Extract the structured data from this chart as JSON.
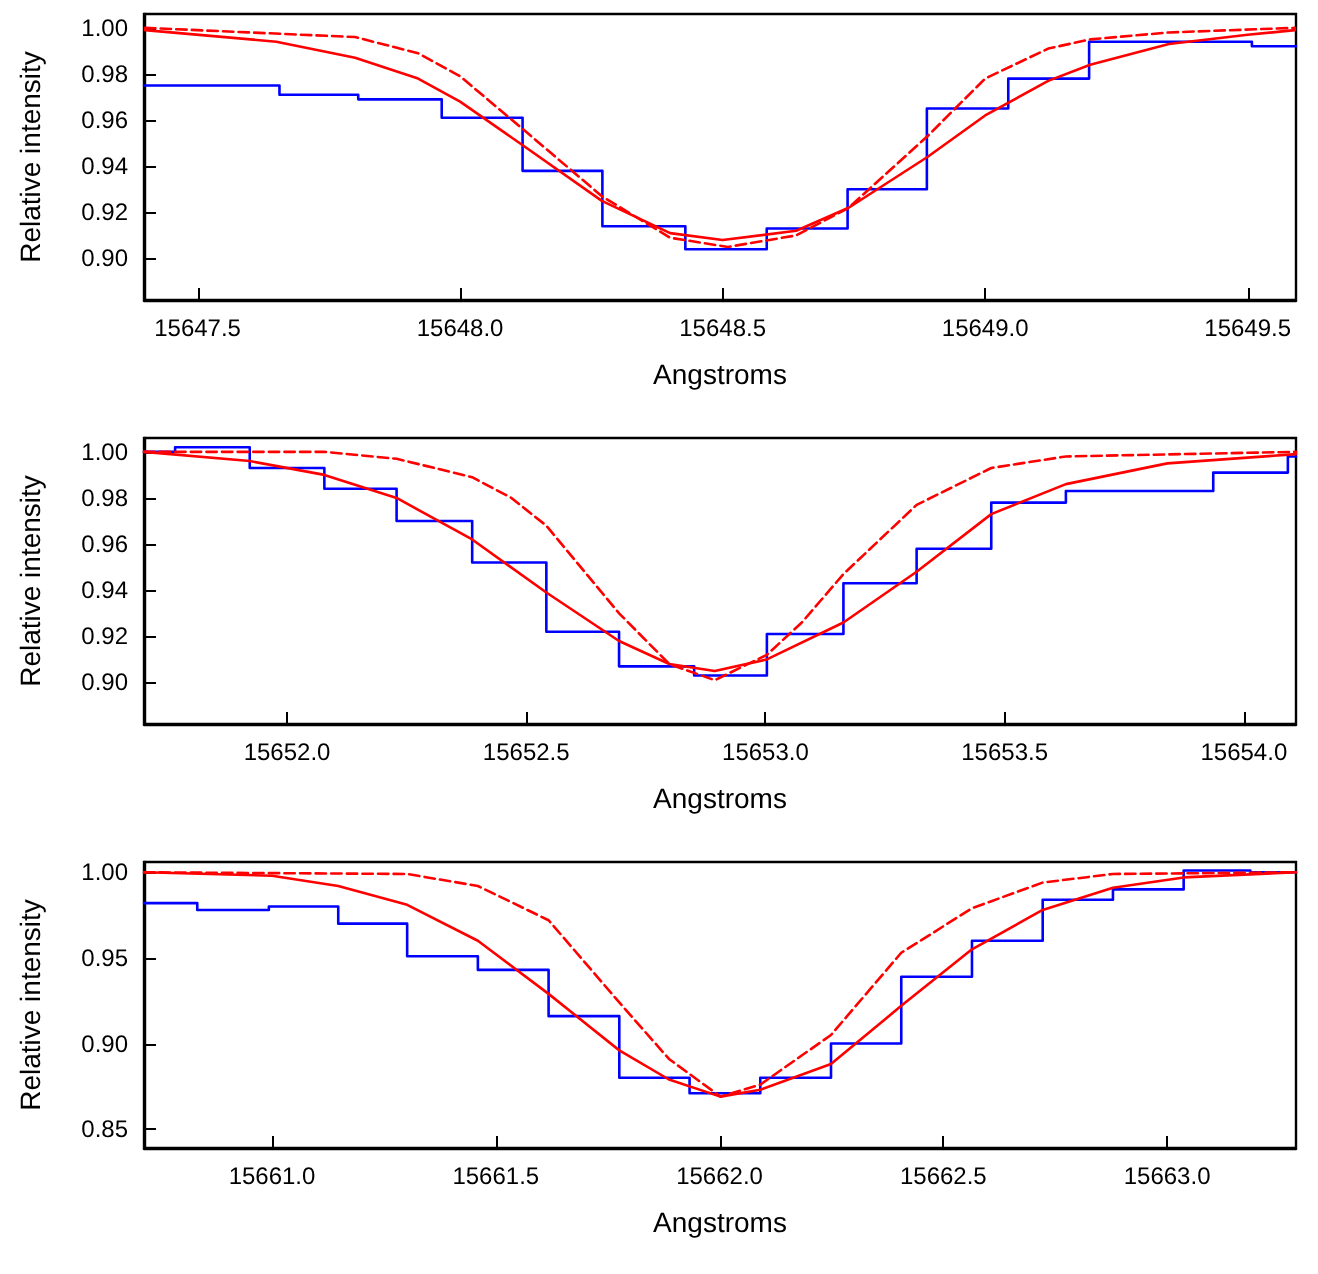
{
  "chart_data": [
    {
      "type": "line",
      "xlabel": "Angstroms",
      "ylabel": "Relative intensity",
      "xlim": [
        15647.398,
        15649.592
      ],
      "ylim": [
        0.882,
        1.006
      ],
      "xticks": [
        {
          "value": 15647.5,
          "label": "15647.5"
        },
        {
          "value": 15648,
          "label": "15648.0"
        },
        {
          "value": 15648.5,
          "label": "15648.5"
        },
        {
          "value": 15649,
          "label": "15649.0"
        },
        {
          "value": 15649.5,
          "label": "15649.5"
        }
      ],
      "yticks": [
        {
          "value": 0.9,
          "label": "0.90"
        },
        {
          "value": 0.92,
          "label": "0.92"
        },
        {
          "value": 0.94,
          "label": "0.94"
        },
        {
          "value": 0.96,
          "label": "0.96"
        },
        {
          "value": 0.98,
          "label": "0.98"
        },
        {
          "value": 1,
          "label": "1.00"
        }
      ],
      "grid": false,
      "marker": "none",
      "series": [
        {
          "type": "step",
          "color": "#0000ff",
          "line_style": "solid",
          "x": [
            15647.398,
            15647.656,
            15647.806,
            15647.965,
            15648.119,
            15648.271,
            15648.429,
            15648.584,
            15648.738,
            15648.889,
            15649.044,
            15649.198,
            15649.508,
            15649.592
          ],
          "values": [
            0.975,
            0.971,
            0.969,
            0.961,
            0.938,
            0.914,
            0.904,
            0.913,
            0.93,
            0.965,
            0.978,
            0.994,
            0.992,
            0.992
          ]
        },
        {
          "type": "line",
          "color": "#ff0000",
          "line_style": "solid",
          "x": [
            15647.4,
            15647.65,
            15647.8,
            15647.92,
            15648.0,
            15648.12,
            15648.27,
            15648.4,
            15648.5,
            15648.64,
            15648.74,
            15648.89,
            15649.0,
            15649.12,
            15649.2,
            15649.35,
            15649.5,
            15649.59
          ],
          "values": [
            0.999,
            0.994,
            0.987,
            0.978,
            0.968,
            0.949,
            0.925,
            0.911,
            0.908,
            0.912,
            0.922,
            0.944,
            0.962,
            0.977,
            0.984,
            0.993,
            0.997,
            0.999
          ]
        },
        {
          "type": "line",
          "color": "#ff0000",
          "line_style": "dashed",
          "x": [
            15647.4,
            15647.8,
            15647.92,
            15648.0,
            15648.12,
            15648.27,
            15648.4,
            15648.51,
            15648.64,
            15648.74,
            15648.89,
            15649.0,
            15649.12,
            15649.2,
            15649.35,
            15649.59
          ],
          "values": [
            1.0,
            0.996,
            0.989,
            0.979,
            0.956,
            0.927,
            0.909,
            0.905,
            0.91,
            0.922,
            0.953,
            0.978,
            0.991,
            0.995,
            0.998,
            1.0
          ]
        }
      ]
    },
    {
      "type": "line",
      "xlabel": "Angstroms",
      "ylabel": "Relative intensity",
      "xlim": [
        15651.701,
        15654.109
      ],
      "ylim": [
        0.882,
        1.006
      ],
      "xticks": [
        {
          "value": 15652,
          "label": "15652.0"
        },
        {
          "value": 15652.5,
          "label": "15652.5"
        },
        {
          "value": 15653,
          "label": "15653.0"
        },
        {
          "value": 15653.5,
          "label": "15653.5"
        },
        {
          "value": 15654,
          "label": "15654.0"
        }
      ],
      "yticks": [
        {
          "value": 0.9,
          "label": "0.90"
        },
        {
          "value": 0.92,
          "label": "0.92"
        },
        {
          "value": 0.94,
          "label": "0.94"
        },
        {
          "value": 0.96,
          "label": "0.96"
        },
        {
          "value": 0.98,
          "label": "0.98"
        },
        {
          "value": 1,
          "label": "1.00"
        }
      ],
      "grid": false,
      "marker": "none",
      "series": [
        {
          "type": "step",
          "color": "#0000ff",
          "line_style": "solid",
          "x": [
            15651.701,
            15651.766,
            15651.922,
            15652.078,
            15652.229,
            15652.387,
            15652.542,
            15652.694,
            15652.851,
            15653.003,
            15653.163,
            15653.316,
            15653.472,
            15653.628,
            15653.936,
            15654.092,
            15654.109
          ],
          "values": [
            1.0,
            1.002,
            0.993,
            0.984,
            0.97,
            0.952,
            0.922,
            0.907,
            0.903,
            0.921,
            0.943,
            0.958,
            0.978,
            0.983,
            0.991,
            0.998,
            0.998
          ]
        },
        {
          "type": "line",
          "color": "#ff0000",
          "line_style": "solid",
          "x": [
            15651.701,
            15651.922,
            15652.078,
            15652.229,
            15652.387,
            15652.542,
            15652.694,
            15652.799,
            15652.894,
            15653.003,
            15653.163,
            15653.316,
            15653.472,
            15653.628,
            15653.84,
            15654.109
          ],
          "values": [
            1.0,
            0.996,
            0.99,
            0.98,
            0.962,
            0.939,
            0.918,
            0.908,
            0.905,
            0.91,
            0.926,
            0.948,
            0.973,
            0.986,
            0.995,
            0.999
          ]
        },
        {
          "type": "line",
          "color": "#ff0000",
          "line_style": "dashed",
          "x": [
            15651.701,
            15652.078,
            15652.229,
            15652.387,
            15652.469,
            15652.542,
            15652.694,
            15652.799,
            15652.894,
            15653.003,
            15653.076,
            15653.163,
            15653.316,
            15653.472,
            15653.628,
            15654.109
          ],
          "values": [
            1.0,
            1.0,
            0.997,
            0.989,
            0.98,
            0.968,
            0.93,
            0.908,
            0.901,
            0.912,
            0.926,
            0.947,
            0.977,
            0.993,
            0.998,
            1.0
          ]
        }
      ]
    },
    {
      "type": "line",
      "xlabel": "Angstroms",
      "ylabel": "Relative intensity",
      "xlim": [
        15660.714,
        15663.288
      ],
      "ylim": [
        0.839,
        1.006
      ],
      "xticks": [
        {
          "value": 15661,
          "label": "15661.0"
        },
        {
          "value": 15661.5,
          "label": "15661.5"
        },
        {
          "value": 15662,
          "label": "15662.0"
        },
        {
          "value": 15662.5,
          "label": "15662.5"
        },
        {
          "value": 15663,
          "label": "15663.0"
        }
      ],
      "yticks": [
        {
          "value": 0.85,
          "label": "0.85"
        },
        {
          "value": 0.9,
          "label": "0.90"
        },
        {
          "value": 0.95,
          "label": "0.95"
        },
        {
          "value": 1,
          "label": "1.00"
        }
      ],
      "grid": false,
      "marker": "none",
      "series": [
        {
          "type": "step",
          "color": "#0000ff",
          "line_style": "solid",
          "x": [
            15660.714,
            15660.833,
            15660.993,
            15661.148,
            15661.302,
            15661.46,
            15661.618,
            15661.776,
            15661.933,
            15662.091,
            15662.249,
            15662.406,
            15662.564,
            15662.722,
            15662.879,
            15663.037,
            15663.186,
            15663.288
          ],
          "values": [
            0.982,
            0.978,
            0.98,
            0.97,
            0.951,
            0.943,
            0.916,
            0.88,
            0.871,
            0.88,
            0.9,
            0.939,
            0.96,
            0.984,
            0.99,
            1.001,
            1.0,
            1.0
          ]
        },
        {
          "type": "line",
          "color": "#ff0000",
          "line_style": "solid",
          "x": [
            15660.714,
            15661.0,
            15661.148,
            15661.302,
            15661.46,
            15661.618,
            15661.776,
            15661.887,
            15662.002,
            15662.091,
            15662.249,
            15662.406,
            15662.564,
            15662.722,
            15662.879,
            15663.037,
            15663.288
          ],
          "values": [
            1.0,
            0.998,
            0.992,
            0.981,
            0.96,
            0.929,
            0.896,
            0.879,
            0.869,
            0.873,
            0.888,
            0.922,
            0.955,
            0.978,
            0.991,
            0.997,
            1.0
          ]
        },
        {
          "type": "line",
          "color": "#ff0000",
          "line_style": "dashed",
          "x": [
            15660.714,
            15661.302,
            15661.46,
            15661.618,
            15661.776,
            15661.887,
            15662.002,
            15662.091,
            15662.249,
            15662.406,
            15662.564,
            15662.722,
            15662.879,
            15663.288
          ],
          "values": [
            1.0,
            0.999,
            0.992,
            0.972,
            0.924,
            0.891,
            0.869,
            0.876,
            0.905,
            0.953,
            0.979,
            0.994,
            0.999,
            1.0
          ]
        }
      ]
    }
  ]
}
